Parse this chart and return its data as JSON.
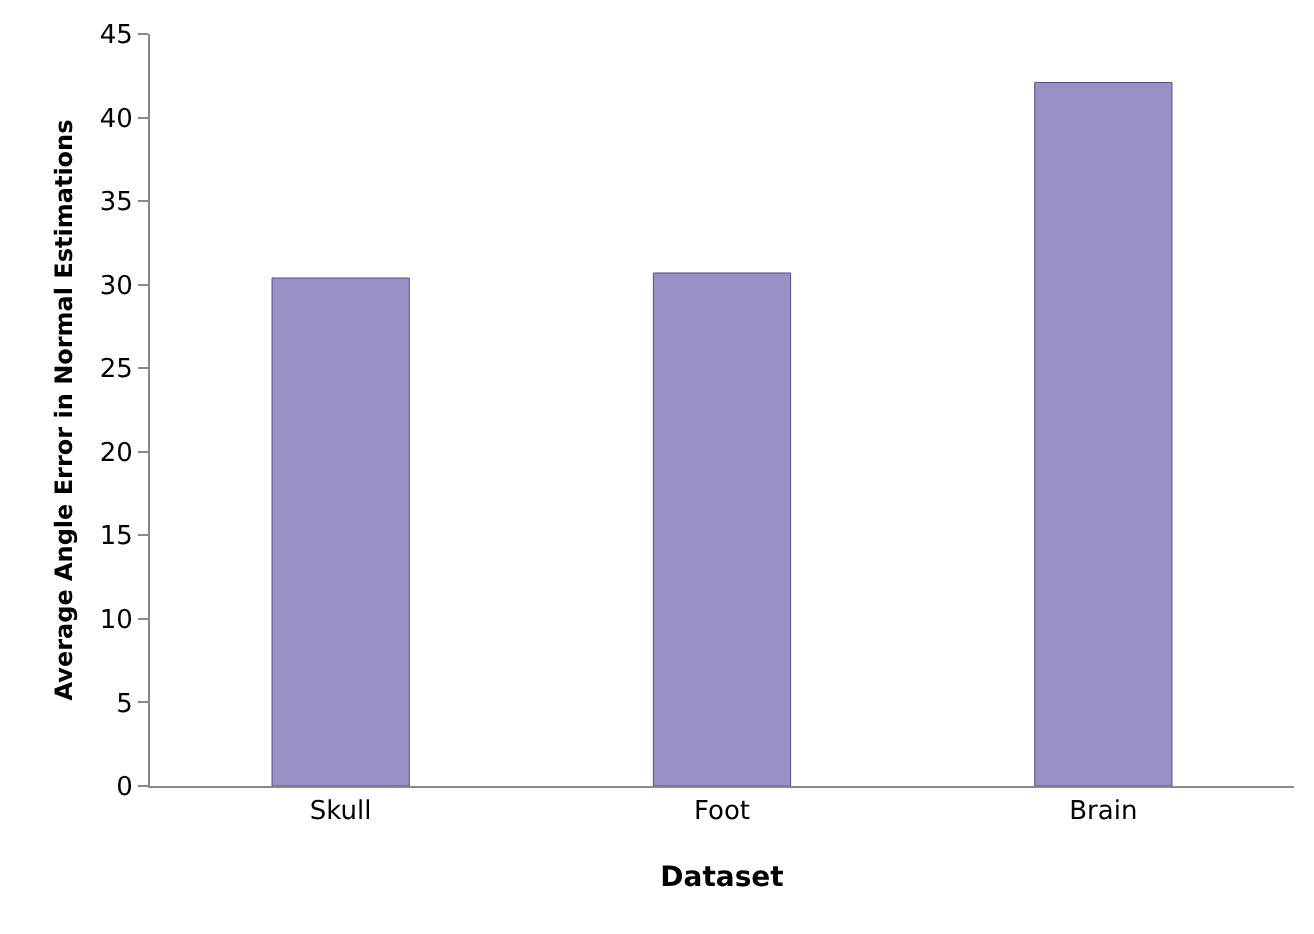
{
  "chart_data": {
    "type": "bar",
    "xlabel": "Dataset",
    "ylabel": "Average Angle Error in Normal Estimations",
    "categories": [
      "Skull",
      "Foot",
      "Brain"
    ],
    "values": [
      30.4,
      30.7,
      42.1
    ],
    "color": "#9a90c6",
    "ylim": [
      0,
      45
    ],
    "yticks": [
      0,
      5,
      10,
      15,
      20,
      25,
      30,
      35,
      40,
      45
    ],
    "grid": false,
    "legend": false
  }
}
